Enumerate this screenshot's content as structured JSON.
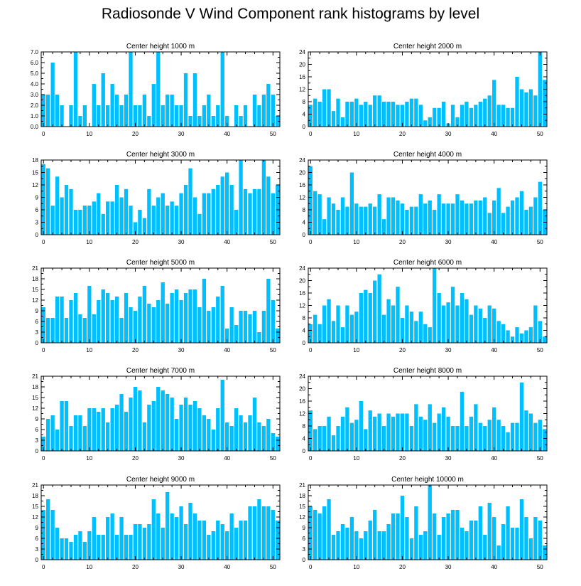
{
  "figure": {
    "title": "Radiosonde V Wind Component rank histograms by level"
  },
  "style": {
    "bar_color": "#00bfff",
    "axis_color": "#000000"
  },
  "chart_data": [
    {
      "type": "bar",
      "title": "Center height 1000 m",
      "x": [
        0,
        1,
        2,
        3,
        4,
        5,
        6,
        7,
        8,
        9,
        10,
        11,
        12,
        13,
        14,
        15,
        16,
        17,
        18,
        19,
        20,
        21,
        22,
        23,
        24,
        25,
        26,
        27,
        28,
        29,
        30,
        31,
        32,
        33,
        34,
        35,
        36,
        37,
        38,
        39,
        40,
        41,
        42,
        43,
        44,
        45,
        46,
        47,
        48,
        49,
        50,
        51
      ],
      "values": [
        3,
        3,
        6,
        3,
        2,
        0,
        2,
        7,
        1,
        2,
        0,
        4,
        2,
        5,
        2,
        4,
        3,
        2,
        3,
        7,
        2,
        2,
        3,
        1,
        4,
        7,
        2,
        3,
        3,
        2,
        2,
        5,
        1,
        5,
        1,
        2,
        3,
        1,
        2,
        7,
        1,
        0,
        2,
        1,
        2,
        0,
        3,
        2,
        3,
        4,
        3,
        1
      ],
      "ylim": [
        0,
        7
      ],
      "yticks": [
        0,
        1,
        2,
        3,
        4,
        5,
        6,
        7
      ],
      "ytick_labels": [
        "0.0",
        "1.0",
        "2.0",
        "3.0",
        "4.0",
        "5.0",
        "6.0",
        "7.0"
      ],
      "xlim": [
        -0.5,
        51.5
      ],
      "xticks": [
        0,
        10,
        20,
        30,
        40,
        50
      ],
      "xlabel": "",
      "ylabel": ""
    },
    {
      "type": "bar",
      "title": "Center height 2000 m",
      "x": [
        0,
        1,
        2,
        3,
        4,
        5,
        6,
        7,
        8,
        9,
        10,
        11,
        12,
        13,
        14,
        15,
        16,
        17,
        18,
        19,
        20,
        21,
        22,
        23,
        24,
        25,
        26,
        27,
        28,
        29,
        30,
        31,
        32,
        33,
        34,
        35,
        36,
        37,
        38,
        39,
        40,
        41,
        42,
        43,
        44,
        45,
        46,
        47,
        48,
        49,
        50,
        51
      ],
      "values": [
        7,
        9,
        8,
        12,
        12,
        5,
        9,
        3,
        8,
        8,
        9,
        7,
        8,
        7,
        10,
        10,
        8,
        8,
        8,
        7,
        7,
        8,
        9,
        9,
        7,
        2,
        3,
        6,
        6,
        8,
        1,
        7,
        3,
        7,
        8,
        6,
        7,
        8,
        9,
        10,
        15,
        7,
        7,
        6,
        6,
        16,
        12,
        11,
        12,
        10,
        24,
        15
      ],
      "ylim": [
        0,
        24
      ],
      "yticks": [
        0,
        4,
        8,
        12,
        16,
        20,
        24
      ],
      "ytick_labels": [
        "0",
        "4",
        "8",
        "12",
        "16",
        "20",
        "24"
      ],
      "xlim": [
        -0.5,
        51.5
      ],
      "xticks": [
        0,
        10,
        20,
        30,
        40,
        50
      ],
      "xlabel": "",
      "ylabel": ""
    },
    {
      "type": "bar",
      "title": "Center height 3000 m",
      "x": [
        0,
        1,
        2,
        3,
        4,
        5,
        6,
        7,
        8,
        9,
        10,
        11,
        12,
        13,
        14,
        15,
        16,
        17,
        18,
        19,
        20,
        21,
        22,
        23,
        24,
        25,
        26,
        27,
        28,
        29,
        30,
        31,
        32,
        33,
        34,
        35,
        36,
        37,
        38,
        39,
        40,
        41,
        42,
        43,
        44,
        45,
        46,
        47,
        48,
        49,
        50,
        51
      ],
      "values": [
        17,
        16,
        7,
        14,
        9,
        12,
        11,
        6,
        6,
        7,
        7,
        8,
        10,
        5,
        8,
        8,
        12,
        9,
        11,
        7,
        3,
        6,
        4,
        11,
        7,
        9,
        10,
        7,
        8,
        7,
        10,
        12,
        16,
        9,
        5,
        10,
        10,
        11,
        12,
        14,
        15,
        12,
        6,
        18,
        11,
        10,
        11,
        11,
        18,
        14,
        10,
        12
      ],
      "ylim": [
        0,
        18
      ],
      "yticks": [
        0,
        3,
        6,
        9,
        12,
        15,
        18
      ],
      "ytick_labels": [
        "0",
        "3",
        "6",
        "9",
        "12",
        "15",
        "18"
      ],
      "xlim": [
        -0.5,
        51.5
      ],
      "xticks": [
        0,
        10,
        20,
        30,
        40,
        50
      ],
      "xlabel": "",
      "ylabel": ""
    },
    {
      "type": "bar",
      "title": "Center height 4000 m",
      "x": [
        0,
        1,
        2,
        3,
        4,
        5,
        6,
        7,
        8,
        9,
        10,
        11,
        12,
        13,
        14,
        15,
        16,
        17,
        18,
        19,
        20,
        21,
        22,
        23,
        24,
        25,
        26,
        27,
        28,
        29,
        30,
        31,
        32,
        33,
        34,
        35,
        36,
        37,
        38,
        39,
        40,
        41,
        42,
        43,
        44,
        45,
        46,
        47,
        48,
        49,
        50,
        51
      ],
      "values": [
        22,
        14,
        13,
        5,
        12,
        10,
        8,
        12,
        9,
        20,
        10,
        9,
        9,
        10,
        9,
        13,
        5,
        12,
        12,
        11,
        10,
        8,
        9,
        9,
        13,
        10,
        11,
        8,
        13,
        10,
        10,
        10,
        13,
        11,
        10,
        10,
        11,
        11,
        12,
        7,
        11,
        15,
        7,
        9,
        11,
        12,
        14,
        8,
        9,
        12,
        17,
        8
      ],
      "ylim": [
        0,
        24
      ],
      "yticks": [
        0,
        4,
        8,
        12,
        16,
        20,
        24
      ],
      "ytick_labels": [
        "0",
        "4",
        "8",
        "12",
        "16",
        "20",
        "24"
      ],
      "xlim": [
        -0.5,
        51.5
      ],
      "xticks": [
        0,
        10,
        20,
        30,
        40,
        50
      ],
      "xlabel": "",
      "ylabel": ""
    },
    {
      "type": "bar",
      "title": "Center height 5000 m",
      "x": [
        0,
        1,
        2,
        3,
        4,
        5,
        6,
        7,
        8,
        9,
        10,
        11,
        12,
        13,
        14,
        15,
        16,
        17,
        18,
        19,
        20,
        21,
        22,
        23,
        24,
        25,
        26,
        27,
        28,
        29,
        30,
        31,
        32,
        33,
        34,
        35,
        36,
        37,
        38,
        39,
        40,
        41,
        42,
        43,
        44,
        45,
        46,
        47,
        48,
        49,
        50,
        51
      ],
      "values": [
        10,
        7,
        7,
        13,
        13,
        7,
        12,
        14,
        8,
        7,
        16,
        8,
        12,
        15,
        14,
        12,
        13,
        7,
        14,
        10,
        9,
        13,
        16,
        11,
        10,
        12,
        17,
        11,
        14,
        15,
        12,
        14,
        15,
        15,
        10,
        18,
        9,
        10,
        13,
        16,
        4,
        10,
        5,
        9,
        9,
        8,
        9,
        3,
        9,
        18,
        12,
        4
      ],
      "ylim": [
        0,
        21
      ],
      "yticks": [
        0,
        3,
        6,
        9,
        12,
        15,
        18,
        21
      ],
      "ytick_labels": [
        "0",
        "3",
        "6",
        "9",
        "12",
        "15",
        "18",
        "21"
      ],
      "xlim": [
        -0.5,
        51.5
      ],
      "xticks": [
        0,
        10,
        20,
        30,
        40,
        50
      ],
      "xlabel": "",
      "ylabel": ""
    },
    {
      "type": "bar",
      "title": "Center height 6000 m",
      "x": [
        0,
        1,
        2,
        3,
        4,
        5,
        6,
        7,
        8,
        9,
        10,
        11,
        12,
        13,
        14,
        15,
        16,
        17,
        18,
        19,
        20,
        21,
        22,
        23,
        24,
        25,
        26,
        27,
        28,
        29,
        30,
        31,
        32,
        33,
        34,
        35,
        36,
        37,
        38,
        39,
        40,
        41,
        42,
        43,
        44,
        45,
        46,
        47,
        48,
        49,
        50,
        51
      ],
      "values": [
        6,
        9,
        6,
        12,
        14,
        7,
        12,
        5,
        12,
        9,
        10,
        16,
        17,
        16,
        20,
        22,
        9,
        14,
        12,
        18,
        8,
        12,
        10,
        7,
        10,
        6,
        5,
        24,
        16,
        12,
        13,
        18,
        12,
        16,
        14,
        9,
        12,
        11,
        8,
        12,
        11,
        7,
        6,
        4,
        2,
        5,
        3,
        4,
        5,
        12,
        7,
        2
      ],
      "ylim": [
        0,
        24
      ],
      "yticks": [
        0,
        4,
        8,
        12,
        16,
        20,
        24
      ],
      "ytick_labels": [
        "0",
        "4",
        "8",
        "12",
        "16",
        "20",
        "24"
      ],
      "xlim": [
        -0.5,
        51.5
      ],
      "xticks": [
        0,
        10,
        20,
        30,
        40,
        50
      ],
      "xlabel": "",
      "ylabel": ""
    },
    {
      "type": "bar",
      "title": "Center height 7000 m",
      "x": [
        0,
        1,
        2,
        3,
        4,
        5,
        6,
        7,
        8,
        9,
        10,
        11,
        12,
        13,
        14,
        15,
        16,
        17,
        18,
        19,
        20,
        21,
        22,
        23,
        24,
        25,
        26,
        27,
        28,
        29,
        30,
        31,
        32,
        33,
        34,
        35,
        36,
        37,
        38,
        39,
        40,
        41,
        42,
        43,
        44,
        45,
        46,
        47,
        48,
        49,
        50,
        51
      ],
      "values": [
        4,
        9,
        10,
        6,
        14,
        14,
        7,
        10,
        10,
        7,
        12,
        12,
        11,
        12,
        8,
        12,
        13,
        16,
        11,
        15,
        18,
        17,
        8,
        13,
        14,
        18,
        17,
        16,
        15,
        9,
        13,
        15,
        13,
        14,
        12,
        10,
        9,
        6,
        12,
        20,
        8,
        7,
        12,
        10,
        8,
        10,
        15,
        8,
        7,
        9,
        5,
        4
      ],
      "ylim": [
        0,
        21
      ],
      "yticks": [
        0,
        3,
        6,
        9,
        12,
        15,
        18,
        21
      ],
      "ytick_labels": [
        "0",
        "3",
        "6",
        "9",
        "12",
        "15",
        "18",
        "21"
      ],
      "xlim": [
        -0.5,
        51.5
      ],
      "xticks": [
        0,
        10,
        20,
        30,
        40,
        50
      ],
      "xlabel": "",
      "ylabel": ""
    },
    {
      "type": "bar",
      "title": "Center height 8000 m",
      "x": [
        0,
        1,
        2,
        3,
        4,
        5,
        6,
        7,
        8,
        9,
        10,
        11,
        12,
        13,
        14,
        15,
        16,
        17,
        18,
        19,
        20,
        21,
        22,
        23,
        24,
        25,
        26,
        27,
        28,
        29,
        30,
        31,
        32,
        33,
        34,
        35,
        36,
        37,
        38,
        39,
        40,
        41,
        42,
        43,
        44,
        45,
        46,
        47,
        48,
        49,
        50,
        51
      ],
      "values": [
        13,
        7,
        8,
        8,
        11,
        5,
        8,
        11,
        14,
        9,
        10,
        16,
        7,
        13,
        11,
        12,
        8,
        12,
        11,
        12,
        12,
        12,
        8,
        15,
        11,
        10,
        15,
        9,
        12,
        14,
        11,
        8,
        8,
        19,
        8,
        11,
        15,
        9,
        8,
        10,
        14,
        10,
        8,
        6,
        9,
        9,
        22,
        13,
        12,
        9,
        10,
        7
      ],
      "ylim": [
        0,
        24
      ],
      "yticks": [
        0,
        4,
        8,
        12,
        16,
        20,
        24
      ],
      "ytick_labels": [
        "0",
        "4",
        "8",
        "12",
        "16",
        "20",
        "24"
      ],
      "xlim": [
        -0.5,
        51.5
      ],
      "xticks": [
        0,
        10,
        20,
        30,
        40,
        50
      ],
      "xlabel": "",
      "ylabel": ""
    },
    {
      "type": "bar",
      "title": "Center height 9000 m",
      "x": [
        0,
        1,
        2,
        3,
        4,
        5,
        6,
        7,
        8,
        9,
        10,
        11,
        12,
        13,
        14,
        15,
        16,
        17,
        18,
        19,
        20,
        21,
        22,
        23,
        24,
        25,
        26,
        27,
        28,
        29,
        30,
        31,
        32,
        33,
        34,
        35,
        36,
        37,
        38,
        39,
        40,
        41,
        42,
        43,
        44,
        45,
        46,
        47,
        48,
        49,
        50,
        51
      ],
      "values": [
        14,
        17,
        14,
        9,
        6,
        6,
        5,
        7,
        8,
        5,
        8,
        12,
        7,
        7,
        12,
        13,
        7,
        12,
        7,
        7,
        10,
        10,
        9,
        10,
        17,
        13,
        9,
        19,
        13,
        12,
        15,
        10,
        16,
        13,
        11,
        11,
        7,
        8,
        11,
        10,
        8,
        13,
        9,
        11,
        11,
        15,
        15,
        17,
        15,
        15,
        14,
        11
      ],
      "ylim": [
        0,
        21
      ],
      "yticks": [
        0,
        3,
        6,
        9,
        12,
        15,
        18,
        21
      ],
      "ytick_labels": [
        "0",
        "3",
        "6",
        "9",
        "12",
        "15",
        "18",
        "21"
      ],
      "xlim": [
        -0.5,
        51.5
      ],
      "xticks": [
        0,
        10,
        20,
        30,
        40,
        50
      ],
      "xlabel": "",
      "ylabel": ""
    },
    {
      "type": "bar",
      "title": "Center height 10000 m",
      "x": [
        0,
        1,
        2,
        3,
        4,
        5,
        6,
        7,
        8,
        9,
        10,
        11,
        12,
        13,
        14,
        15,
        16,
        17,
        18,
        19,
        20,
        21,
        22,
        23,
        24,
        25,
        26,
        27,
        28,
        29,
        30,
        31,
        32,
        33,
        34,
        35,
        36,
        37,
        38,
        39,
        40,
        41,
        42,
        43,
        44,
        45,
        46,
        47,
        48,
        49,
        50,
        51
      ],
      "values": [
        15,
        14,
        13,
        15,
        17,
        7,
        8,
        10,
        9,
        12,
        8,
        6,
        8,
        11,
        14,
        8,
        8,
        10,
        13,
        13,
        18,
        12,
        6,
        15,
        7,
        8,
        21,
        13,
        7,
        12,
        13,
        14,
        14,
        9,
        8,
        11,
        11,
        15,
        7,
        16,
        12,
        4,
        10,
        15,
        9,
        9,
        17,
        12,
        6,
        12,
        11,
        4
      ],
      "ylim": [
        0,
        21
      ],
      "yticks": [
        0,
        3,
        6,
        9,
        12,
        15,
        18,
        21
      ],
      "ytick_labels": [
        "0",
        "3",
        "6",
        "9",
        "12",
        "15",
        "18",
        "21"
      ],
      "xlim": [
        -0.5,
        51.5
      ],
      "xticks": [
        0,
        10,
        20,
        30,
        40,
        50
      ],
      "xlabel": "",
      "ylabel": ""
    }
  ]
}
